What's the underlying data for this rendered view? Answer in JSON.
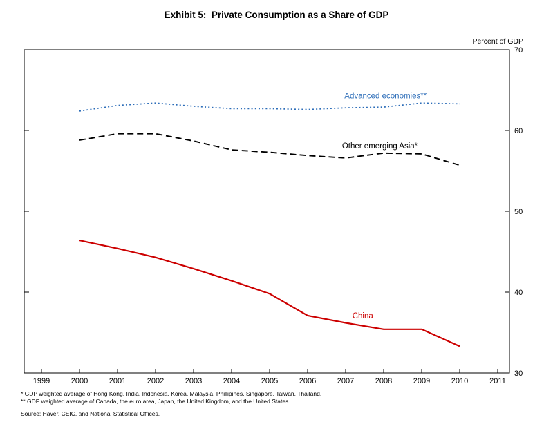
{
  "page": {
    "title": "Exhibit 5:  Private Consumption as a Share of GDP"
  },
  "chart_data": {
    "type": "line",
    "title": "Exhibit 5:  Private Consumption as a Share of GDP",
    "unit_label": "Percent of GDP",
    "xlabel": "",
    "ylabel": "Percent of GDP",
    "ylim": [
      30,
      70
    ],
    "x_ticks": [
      1999,
      2000,
      2001,
      2002,
      2003,
      2004,
      2005,
      2006,
      2007,
      2008,
      2009,
      2010,
      2011
    ],
    "y_ticks": [
      30,
      40,
      50,
      60,
      70
    ],
    "grid": false,
    "legend_position": "inline-labels",
    "x": [
      2000,
      2001,
      2002,
      2003,
      2004,
      2005,
      2006,
      2007,
      2008,
      2009,
      2010
    ],
    "series": [
      {
        "name": "Advanced economies**",
        "color": "#2b6cb8",
        "line_style": "dotted",
        "values": [
          62.4,
          63.1,
          63.4,
          63.0,
          62.7,
          62.7,
          62.6,
          62.8,
          62.9,
          63.4,
          63.3
        ],
        "label_anchor": {
          "year": 2008.05,
          "value": 64.3
        }
      },
      {
        "name": "Other emerging Asia*",
        "color": "#000000",
        "line_style": "dashed",
        "values": [
          58.8,
          59.6,
          59.6,
          58.7,
          57.6,
          57.3,
          56.9,
          56.6,
          57.2,
          57.1,
          55.7
        ],
        "label_anchor": {
          "year": 2007.9,
          "value": 58.1
        }
      },
      {
        "name": "China",
        "color": "#cc0000",
        "line_style": "solid",
        "values": [
          46.4,
          45.4,
          44.3,
          42.9,
          41.4,
          39.8,
          37.1,
          36.2,
          35.4,
          35.4,
          33.3
        ],
        "label_anchor": {
          "year": 2007.45,
          "value": 37.1
        }
      }
    ]
  },
  "footnotes": {
    "note1": "* GDP weighted average of Hong Kong, India, Indonesia, Korea, Malaysia, Phillipines, Singapore, Taiwan, Thailand.",
    "note2": "** GDP weighted average of Canada, the euro area, Japan, the United Kingdom, and the United States.",
    "source": "Source: Haver, CEIC, and National Statistical Offices."
  }
}
